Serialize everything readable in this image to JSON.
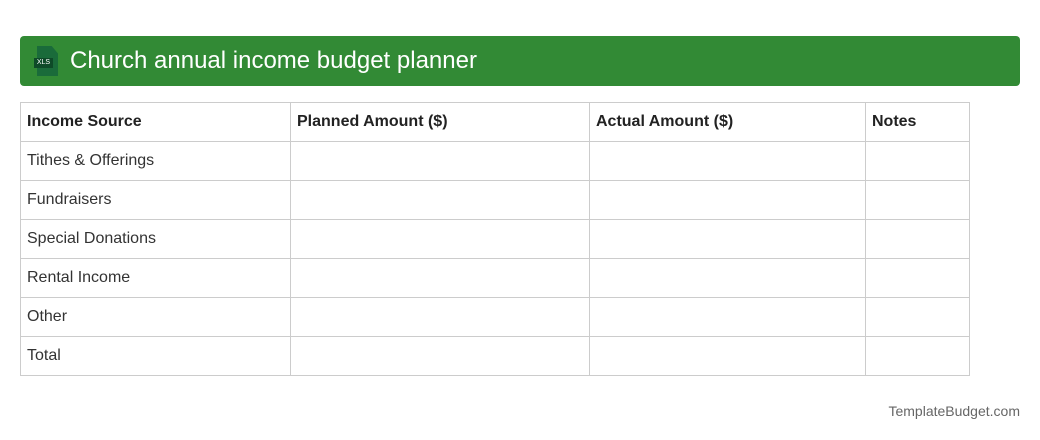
{
  "header": {
    "title": "Church annual income budget planner",
    "icon": "xls-file-icon",
    "icon_label": "XLS"
  },
  "table": {
    "columns": [
      "Income Source",
      "Planned Amount ($)",
      "Actual Amount ($)",
      "Notes"
    ],
    "rows": [
      [
        "Tithes & Offerings",
        "",
        "",
        ""
      ],
      [
        "Fundraisers",
        "",
        "",
        ""
      ],
      [
        "Special Donations",
        "",
        "",
        ""
      ],
      [
        "Rental Income",
        "",
        "",
        ""
      ],
      [
        "Other",
        "",
        "",
        ""
      ],
      [
        "Total",
        "",
        "",
        ""
      ]
    ]
  },
  "footer": {
    "brand": "TemplateBudget.com"
  }
}
